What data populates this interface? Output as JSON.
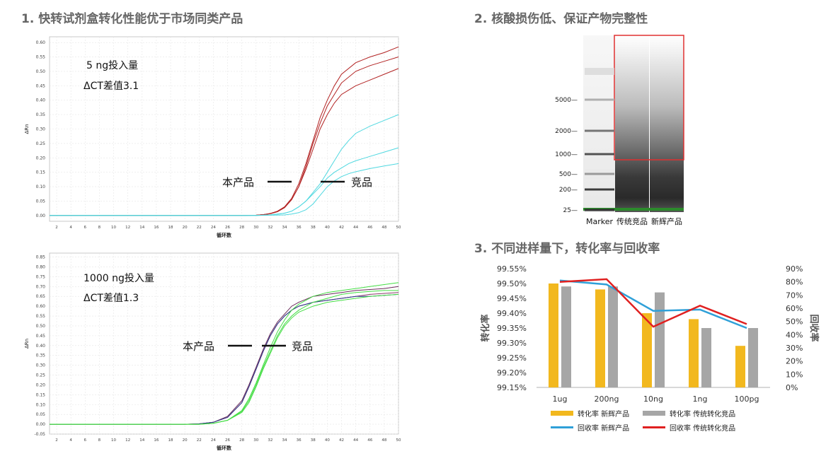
{
  "sections": {
    "s1_title": "1. 快转试剂盒转化性能优于市场同类产品",
    "s2_title": "2. 核酸损伤低、保证产物完整性",
    "s3_title": "3. 不同进样量下，转化率与回收率"
  },
  "colors": {
    "red": "#b22222",
    "cyan": "#4fd8e0",
    "green": "#44dd44",
    "purple": "#6a2a5a",
    "bar_yellow": "#f2b81e",
    "bar_gray": "#a6a6a6",
    "line_blue": "#2fa0d8",
    "line_red": "#e02020"
  },
  "chart_data": [
    {
      "type": "line",
      "note_line1": "5 ng投入量",
      "note_line2": "ΔCT差值3.1",
      "label_product": "本产品",
      "label_competitor": "竞品",
      "xlabel": "循环数",
      "ylabel": "ΔRn",
      "xlim": [
        1,
        50
      ],
      "ylim": [
        -0.02,
        0.62
      ],
      "xticks": [
        2,
        4,
        6,
        8,
        10,
        12,
        14,
        16,
        18,
        20,
        22,
        24,
        26,
        28,
        30,
        32,
        34,
        36,
        38,
        40,
        42,
        44,
        46,
        48,
        50
      ],
      "yticks": [
        "0.00",
        "0.05",
        "0.10",
        "0.15",
        "0.20",
        "0.25",
        "0.30",
        "0.35",
        "0.40",
        "0.45",
        "0.50",
        "0.55",
        "0.60"
      ],
      "series": [
        {
          "group": "product",
          "x": [
            1,
            10,
            20,
            28,
            30,
            31,
            32,
            33,
            34,
            35,
            36,
            37,
            38,
            39,
            40,
            41,
            42,
            44,
            46,
            48,
            50
          ],
          "y": [
            0,
            0,
            0,
            0,
            0.001,
            0.003,
            0.007,
            0.015,
            0.03,
            0.06,
            0.11,
            0.18,
            0.26,
            0.34,
            0.4,
            0.45,
            0.49,
            0.53,
            0.55,
            0.565,
            0.585
          ]
        },
        {
          "group": "product",
          "x": [
            1,
            10,
            20,
            28,
            30,
            31,
            32,
            33,
            34,
            35,
            36,
            37,
            38,
            39,
            40,
            41,
            42,
            44,
            46,
            48,
            50
          ],
          "y": [
            0,
            0,
            0,
            0,
            0.001,
            0.003,
            0.007,
            0.014,
            0.028,
            0.056,
            0.1,
            0.17,
            0.25,
            0.32,
            0.38,
            0.42,
            0.46,
            0.5,
            0.52,
            0.535,
            0.55
          ]
        },
        {
          "group": "product",
          "x": [
            1,
            10,
            20,
            28,
            30,
            31,
            32,
            33,
            34,
            35,
            36,
            37,
            38,
            39,
            40,
            41,
            42,
            44,
            46,
            48,
            50
          ],
          "y": [
            0,
            0,
            0,
            0,
            0.001,
            0.003,
            0.006,
            0.013,
            0.027,
            0.055,
            0.1,
            0.16,
            0.23,
            0.3,
            0.35,
            0.39,
            0.42,
            0.45,
            0.47,
            0.49,
            0.51
          ]
        },
        {
          "group": "competitor",
          "x": [
            1,
            10,
            20,
            30,
            32,
            34,
            35,
            36,
            37,
            38,
            39,
            40,
            41,
            42,
            43,
            44,
            46,
            48,
            50
          ],
          "y": [
            0,
            0,
            0,
            0,
            0.002,
            0.008,
            0.015,
            0.03,
            0.05,
            0.08,
            0.11,
            0.15,
            0.19,
            0.23,
            0.26,
            0.285,
            0.31,
            0.33,
            0.35
          ]
        },
        {
          "group": "competitor",
          "x": [
            1,
            10,
            20,
            30,
            32,
            34,
            35,
            36,
            37,
            38,
            39,
            40,
            41,
            42,
            43,
            44,
            46,
            48,
            50
          ],
          "y": [
            0,
            0,
            0,
            0,
            0.002,
            0.008,
            0.015,
            0.03,
            0.05,
            0.075,
            0.1,
            0.13,
            0.15,
            0.165,
            0.18,
            0.19,
            0.205,
            0.22,
            0.235
          ]
        },
        {
          "group": "competitor",
          "x": [
            1,
            10,
            20,
            30,
            34,
            35,
            36,
            37,
            38,
            39,
            40,
            41,
            42,
            43,
            44,
            46,
            48,
            50
          ],
          "y": [
            0,
            0,
            0,
            0,
            0.002,
            0.005,
            0.01,
            0.02,
            0.04,
            0.07,
            0.1,
            0.12,
            0.135,
            0.145,
            0.152,
            0.163,
            0.172,
            0.18
          ]
        }
      ]
    },
    {
      "type": "line",
      "note_line1": "1000 ng投入量",
      "note_line2": "ΔCT差值1.3",
      "label_product": "本产品",
      "label_competitor": "竞品",
      "xlabel": "循环数",
      "ylabel": "ΔRn",
      "xlim": [
        1,
        50
      ],
      "ylim": [
        -0.05,
        0.87
      ],
      "xticks": [
        2,
        4,
        6,
        8,
        10,
        12,
        14,
        16,
        18,
        20,
        22,
        24,
        26,
        28,
        30,
        32,
        34,
        36,
        38,
        40,
        42,
        44,
        46,
        48,
        50
      ],
      "yticks": [
        "-0.05",
        "0.00",
        "0.05",
        "0.10",
        "0.15",
        "0.20",
        "0.25",
        "0.30",
        "0.35",
        "0.40",
        "0.45",
        "0.50",
        "0.55",
        "0.60",
        "0.65",
        "0.70",
        "0.75",
        "0.80",
        "0.85"
      ],
      "series": [
        {
          "group": "product",
          "x": [
            1,
            10,
            20,
            22,
            24,
            26,
            28,
            29,
            30,
            31,
            32,
            33,
            34,
            35,
            36,
            38,
            40,
            42,
            44,
            46,
            48,
            50
          ],
          "y": [
            0,
            0,
            0,
            0.002,
            0.01,
            0.04,
            0.12,
            0.2,
            0.29,
            0.38,
            0.46,
            0.52,
            0.56,
            0.6,
            0.62,
            0.65,
            0.66,
            0.67,
            0.68,
            0.685,
            0.69,
            0.7
          ]
        },
        {
          "group": "product",
          "x": [
            1,
            10,
            20,
            22,
            24,
            26,
            28,
            29,
            30,
            31,
            32,
            33,
            34,
            35,
            36,
            38,
            40,
            42,
            44,
            46,
            48,
            50
          ],
          "y": [
            0,
            0,
            0,
            0.002,
            0.01,
            0.035,
            0.11,
            0.19,
            0.28,
            0.37,
            0.45,
            0.51,
            0.55,
            0.58,
            0.6,
            0.62,
            0.63,
            0.64,
            0.65,
            0.66,
            0.665,
            0.67
          ]
        },
        {
          "group": "product",
          "x": [
            1,
            10,
            20,
            22,
            24,
            26,
            28,
            29,
            30,
            31,
            32,
            33,
            34,
            35,
            36,
            38,
            40,
            42,
            44,
            46,
            48,
            50
          ],
          "y": [
            0,
            0,
            0,
            0.002,
            0.01,
            0.035,
            0.11,
            0.19,
            0.28,
            0.37,
            0.45,
            0.51,
            0.55,
            0.58,
            0.6,
            0.62,
            0.63,
            0.64,
            0.65,
            0.65,
            0.655,
            0.66
          ]
        },
        {
          "group": "competitor",
          "x": [
            1,
            10,
            20,
            22,
            24,
            26,
            28,
            29,
            30,
            31,
            32,
            33,
            34,
            35,
            36,
            38,
            40,
            42,
            44,
            46,
            48,
            50
          ],
          "y": [
            0,
            0,
            0,
            0,
            0.005,
            0.02,
            0.07,
            0.13,
            0.21,
            0.3,
            0.39,
            0.47,
            0.53,
            0.58,
            0.61,
            0.65,
            0.67,
            0.68,
            0.69,
            0.7,
            0.71,
            0.72
          ]
        },
        {
          "group": "competitor",
          "x": [
            1,
            10,
            20,
            22,
            24,
            26,
            28,
            29,
            30,
            31,
            32,
            33,
            34,
            35,
            36,
            38,
            40,
            42,
            44,
            46,
            48,
            50
          ],
          "y": [
            0,
            0,
            0,
            0,
            0.005,
            0.02,
            0.065,
            0.12,
            0.2,
            0.29,
            0.37,
            0.45,
            0.51,
            0.55,
            0.58,
            0.62,
            0.64,
            0.66,
            0.67,
            0.675,
            0.68,
            0.68
          ]
        },
        {
          "group": "competitor",
          "x": [
            1,
            10,
            20,
            22,
            24,
            26,
            28,
            29,
            30,
            31,
            32,
            33,
            34,
            35,
            36,
            38,
            40,
            42,
            44,
            46,
            48,
            50
          ],
          "y": [
            0,
            0,
            0,
            0,
            0.005,
            0.02,
            0.06,
            0.11,
            0.19,
            0.28,
            0.36,
            0.44,
            0.5,
            0.54,
            0.57,
            0.6,
            0.62,
            0.63,
            0.64,
            0.65,
            0.655,
            0.66
          ]
        }
      ]
    },
    {
      "type": "gel",
      "marker_labels": [
        "5000—",
        "2000—",
        "1000—",
        "500—",
        "200—",
        "25—"
      ],
      "marker_sizes": [
        5000,
        2000,
        1000,
        500,
        200,
        25
      ],
      "lane_labels": [
        "Marker",
        "传统竞品",
        "新辉产品"
      ]
    },
    {
      "type": "bar",
      "categories": [
        "1ug",
        "200ng",
        "10ng",
        "1ng",
        "100pg"
      ],
      "ylabel": "转化率",
      "y2label": "回收率",
      "ylim": [
        99.15,
        99.55
      ],
      "y2lim": [
        0,
        90
      ],
      "yticks": [
        "99.55%",
        "99.50%",
        "99.45%",
        "99.40%",
        "99.35%",
        "99.30%",
        "99.25%",
        "99.20%",
        "99.15%"
      ],
      "y2ticks": [
        "90%",
        "80%",
        "70%",
        "60%",
        "50%",
        "40%",
        "30%",
        "20%",
        "10%",
        "0%"
      ],
      "series": [
        {
          "name": "转化率 新辉产品",
          "kind": "bar",
          "values": [
            99.5,
            99.48,
            99.4,
            99.38,
            99.29
          ]
        },
        {
          "name": "转化率 传统转化竞品",
          "kind": "bar",
          "values": [
            99.49,
            99.49,
            99.47,
            99.35,
            99.35
          ]
        },
        {
          "name": "回收率 新辉产品",
          "kind": "line",
          "values": [
            81,
            78,
            58,
            59,
            45
          ]
        },
        {
          "name": "回收率 传统转化竞品",
          "kind": "line",
          "values": [
            80,
            82,
            46,
            62,
            48
          ]
        }
      ]
    }
  ]
}
